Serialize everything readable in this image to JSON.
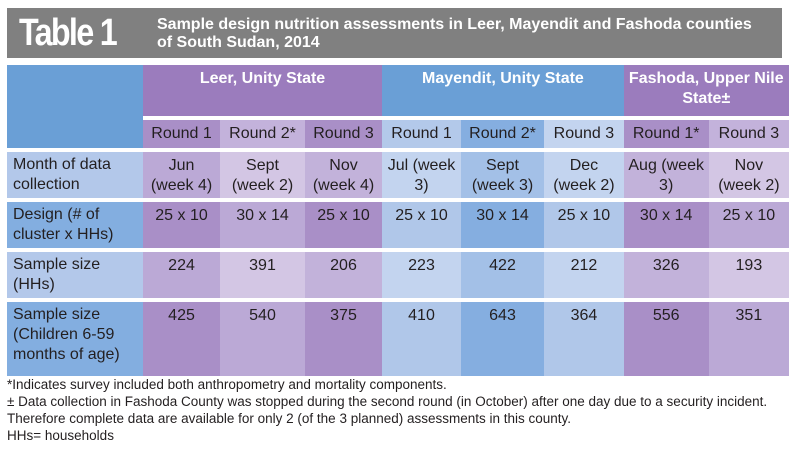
{
  "title": {
    "number": "Table 1",
    "text": "Sample design nutrition assessments in Leer, Mayendit and Fashoda counties of South Sudan, 2014"
  },
  "colors": {
    "title_bg": "#808080",
    "purple": "#9b7cbd",
    "blue": "#6a9fd6"
  },
  "groups": [
    {
      "label": "Leer, Unity State",
      "span": 3,
      "color": "#9b7cbd"
    },
    {
      "label": "Mayendit, Unity State",
      "span": 3,
      "color": "#6a9fd6"
    },
    {
      "label": "Fashoda, Upper Nile State±",
      "span": 2,
      "color": "#9b7cbd"
    }
  ],
  "rounds": [
    "Round 1",
    "Round 2*",
    "Round 3",
    "Round 1",
    "Round 2*",
    "Round 3",
    "Round 1*",
    "Round 3"
  ],
  "rows": [
    {
      "label": "Month of data collection",
      "values": [
        "Jun (week 4)",
        "Sept (week 2)",
        "Nov (week 4)",
        "Jul (week 3)",
        "Sept (week 3)",
        "Dec (week 2)",
        "Aug (week 3)",
        "Nov (week 2)"
      ]
    },
    {
      "label": "Design (# of cluster x HHs)",
      "values": [
        "25 x 10",
        "30 x 14",
        "25 x 10",
        "25 x 10",
        "30 x 14",
        "25 x 10",
        "30 x 14",
        "25 x 10"
      ]
    },
    {
      "label": "Sample size (HHs)",
      "values": [
        "224",
        "391",
        "206",
        "223",
        "422",
        "212",
        "326",
        "193"
      ]
    },
    {
      "label": "Sample size (Children 6-59 months of age)",
      "values": [
        "425",
        "540",
        "375",
        "410",
        "643",
        "364",
        "556",
        "351"
      ]
    }
  ],
  "footnotes": [
    "*Indicates survey included both anthropometry and mortality components.",
    "± Data collection in Fashoda County was stopped during the second round (in October) after one day due to a security incident. Therefore complete data are available for only 2 (of the 3 planned) assessments in this county.",
    "HHs= households"
  ]
}
